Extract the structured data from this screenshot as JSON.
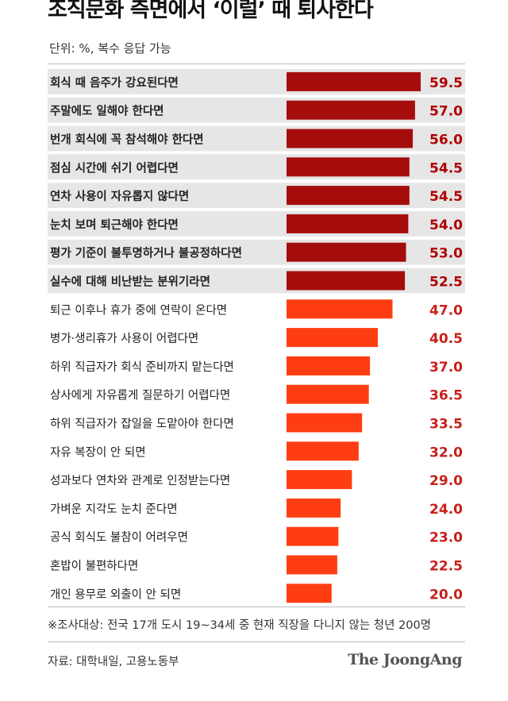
{
  "title": "조직문화 측면에서 ‘이럴’ 때 퇴사한다",
  "unit_note": "단위: %, 복수 응답 가능",
  "survey_note": "※조사대상: 전국 17개 도시 19~34세 중 현재 직장을 다니지 않는 청년 200명",
  "source": "자료: 대학내일, 고용노동부",
  "publisher": "The JoongAng",
  "colors": {
    "dark_bar": "#a50d0d",
    "light_bar": "#ff3d12",
    "dark_label": "#b00000",
    "light_label": "#c8201a",
    "highlight_bg": "#e6e6e6"
  },
  "chart_data": {
    "type": "bar",
    "orientation": "horizontal",
    "title": "조직문화 측면에서 ‘이럴’ 때 퇴사한다",
    "xlim": [
      0,
      59.5
    ],
    "categories": [
      "회식 때 음주가 강요된다면",
      "주말에도 일해야 한다면",
      "번개 회식에 꼭 참석해야 한다면",
      "점심 시간에 쉬기 어렵다면",
      "연차 사용이 자유롭지 않다면",
      "눈치 보며 퇴근해야 한다면",
      "평가 기준이 불투명하거나 불공정하다면",
      "실수에 대해 비난받는 분위기라면",
      "퇴근 이후나 휴가 중에 연락이 온다면",
      "병가·생리휴가 사용이 어렵다면",
      "하위 직급자가 회식 준비까지 맡는다면",
      "상사에게 자유롭게 질문하기 어렵다면",
      "하위 직급자가 잡일을 도맡아야 한다면",
      "자유 복장이 안 되면",
      "성과보다 연차와 관계로 인정받는다면",
      "가벼운 지각도 눈치 준다면",
      "공식 회식도 불참이 어려우면",
      "혼밥이 불편하다면",
      "개인 용무로 외출이 안 되면"
    ],
    "values": [
      59.5,
      57.0,
      56.0,
      54.5,
      54.5,
      54.0,
      53.0,
      52.5,
      47.0,
      40.5,
      37.0,
      36.5,
      33.5,
      32.0,
      29.0,
      24.0,
      23.0,
      22.5,
      20.0
    ],
    "value_labels": [
      "59.5",
      "57.0",
      "56.0",
      "54.5",
      "54.5",
      "54.0",
      "53.0",
      "52.5",
      "47.0",
      "40.5",
      "37.0",
      "36.5",
      "33.5",
      "32.0",
      "29.0",
      "24.0",
      "23.0",
      "22.5",
      "20.0"
    ],
    "highlighted_top": 8
  }
}
